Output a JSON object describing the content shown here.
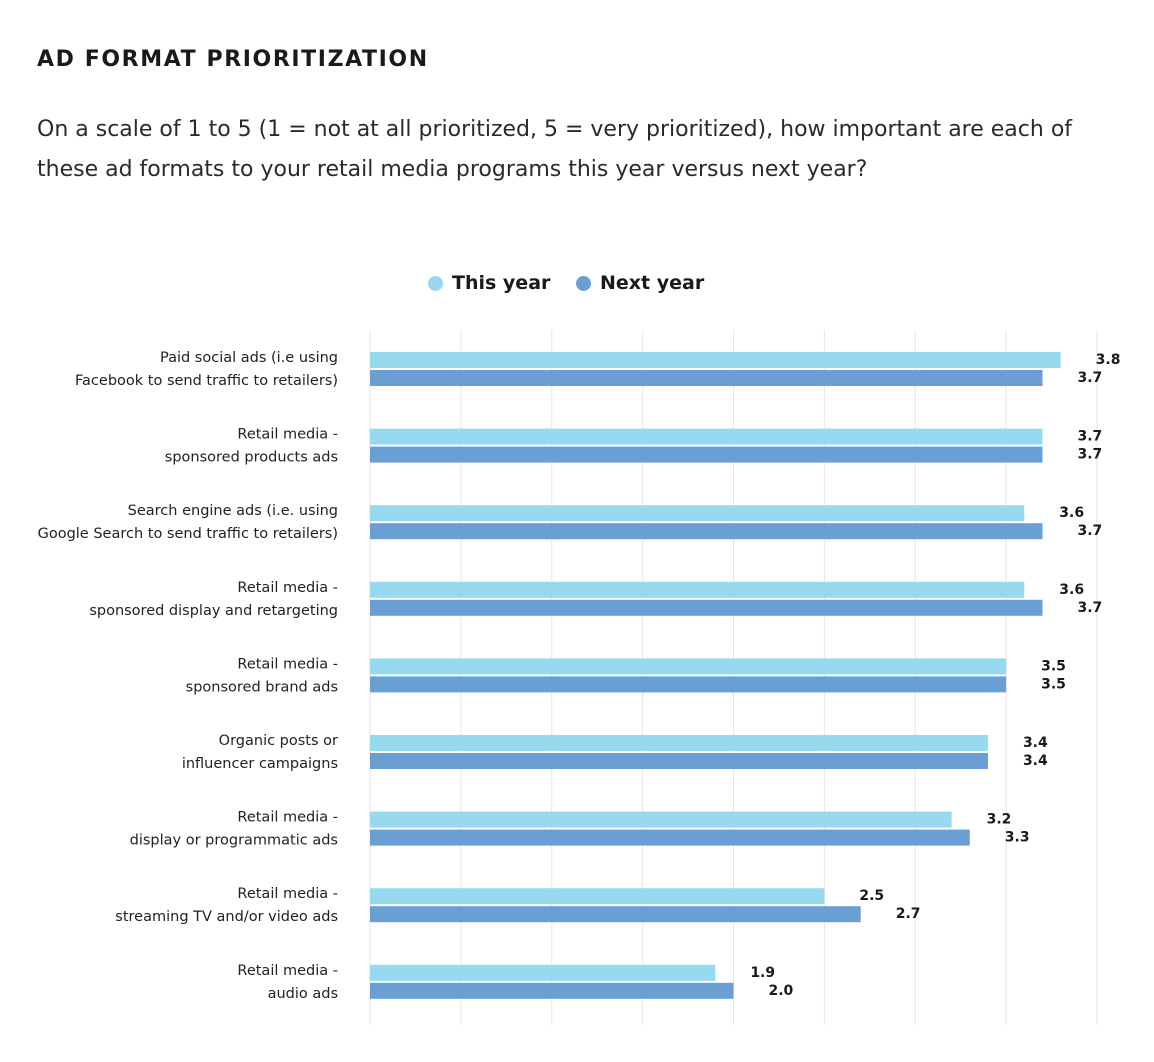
{
  "title": "AD FORMAT PRIORITIZATION",
  "subtitle": "On a scale of 1 to 5 (1 = not at all prioritized, 5 = very prioritized), how important are each of these ad formats to your retail media programs this year versus next year?",
  "colors": {
    "this_year": "#97daf0",
    "next_year": "#6a9fd3",
    "grid": "#e6e6e6"
  },
  "chart_data": {
    "type": "bar",
    "orientation": "horizontal",
    "categories": [
      [
        "Paid social ads (i.e using",
        "Facebook to send traffic to retailers)"
      ],
      [
        "Retail media -",
        "sponsored products ads"
      ],
      [
        "Search engine ads (i.e. using",
        "Google Search to send traffic to retailers)"
      ],
      [
        "Retail media -",
        "sponsored display and retargeting"
      ],
      [
        "Retail media -",
        "sponsored brand ads"
      ],
      [
        "Organic posts or",
        "influencer campaigns"
      ],
      [
        "Retail media -",
        "display or programmatic ads"
      ],
      [
        "Retail media -",
        "streaming TV and/or video ads"
      ],
      [
        "Retail media -",
        "audio ads"
      ]
    ],
    "series": [
      {
        "name": "This year",
        "values": [
          3.8,
          3.7,
          3.6,
          3.6,
          3.5,
          3.4,
          3.2,
          2.5,
          1.9
        ]
      },
      {
        "name": "Next year",
        "values": [
          3.7,
          3.7,
          3.7,
          3.7,
          3.5,
          3.4,
          3.3,
          2.7,
          2.0
        ]
      }
    ],
    "value_labels": [
      [
        "3.8",
        "3.7",
        "3.6",
        "3.6",
        "3.5",
        "3.4",
        "3.2",
        "2.5",
        "1.9"
      ],
      [
        "3.7",
        "3.7",
        "3.7",
        "3.7",
        "3.5",
        "3.4",
        "3.3",
        "2.7",
        "2.0"
      ]
    ],
    "xlim": [
      0,
      4
    ],
    "grid": true,
    "legend_position": "top-center"
  }
}
